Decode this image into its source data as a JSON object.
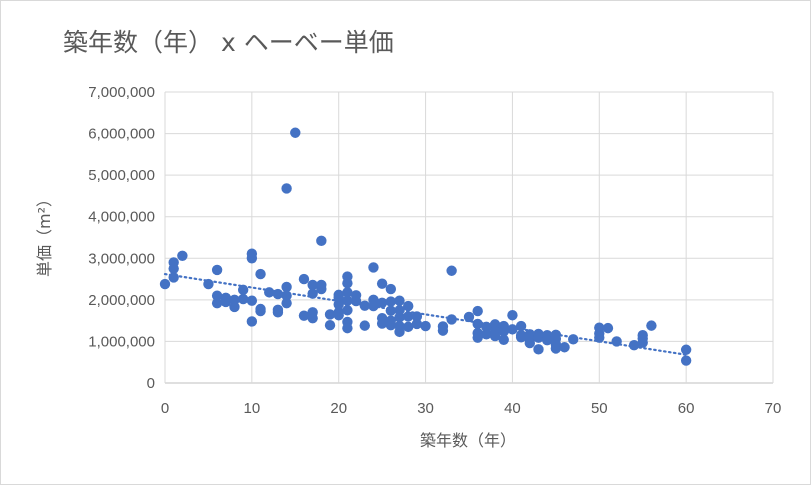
{
  "chart_data": {
    "type": "scatter",
    "title": "築年数（年） x ヘーベー単価",
    "xlabel": "築年数（年）",
    "ylabel": "単価（m²）",
    "xlim": [
      0,
      70
    ],
    "ylim": [
      0,
      7000000
    ],
    "x_ticks": [
      0,
      10,
      20,
      30,
      40,
      50,
      60,
      70
    ],
    "y_ticks": [
      0,
      1000000,
      2000000,
      3000000,
      4000000,
      5000000,
      6000000,
      7000000
    ],
    "y_tick_labels": [
      "0",
      "1,000,000",
      "2,000,000",
      "3,000,000",
      "4,000,000",
      "5,000,000",
      "6,000,000",
      "7,000,000"
    ],
    "grid": true,
    "legend": "none",
    "marker_color": "#4472c4",
    "trendline": {
      "type": "linear",
      "style": "dotted",
      "color": "#4472c4",
      "x": [
        0,
        60
      ],
      "y": [
        2620000,
        680000
      ]
    },
    "series": [
      {
        "points": [
          [
            0,
            2380000
          ],
          [
            1,
            2900000
          ],
          [
            1,
            2750000
          ],
          [
            1,
            2540000
          ],
          [
            2,
            3060000
          ],
          [
            5,
            2380000
          ],
          [
            6,
            2720000
          ],
          [
            6,
            2100000
          ],
          [
            6,
            1920000
          ],
          [
            7,
            2050000
          ],
          [
            7,
            1950000
          ],
          [
            8,
            2000000
          ],
          [
            8,
            1830000
          ],
          [
            9,
            2240000
          ],
          [
            9,
            2020000
          ],
          [
            10,
            3110000
          ],
          [
            10,
            3000000
          ],
          [
            10,
            1980000
          ],
          [
            10,
            1480000
          ],
          [
            11,
            2620000
          ],
          [
            11,
            1780000
          ],
          [
            11,
            1730000
          ],
          [
            12,
            2180000
          ],
          [
            13,
            2140000
          ],
          [
            13,
            1760000
          ],
          [
            13,
            1700000
          ],
          [
            14,
            4680000
          ],
          [
            14,
            2310000
          ],
          [
            14,
            2100000
          ],
          [
            14,
            1920000
          ],
          [
            15,
            6020000
          ],
          [
            16,
            2500000
          ],
          [
            16,
            1620000
          ],
          [
            17,
            2360000
          ],
          [
            17,
            2150000
          ],
          [
            17,
            1700000
          ],
          [
            17,
            1560000
          ],
          [
            18,
            3420000
          ],
          [
            18,
            2360000
          ],
          [
            18,
            2260000
          ],
          [
            19,
            1650000
          ],
          [
            19,
            1390000
          ],
          [
            20,
            2120000
          ],
          [
            20,
            2050000
          ],
          [
            20,
            1890000
          ],
          [
            20,
            1700000
          ],
          [
            20,
            1630000
          ],
          [
            21,
            2560000
          ],
          [
            21,
            2400000
          ],
          [
            21,
            2180000
          ],
          [
            21,
            1980000
          ],
          [
            21,
            1750000
          ],
          [
            21,
            1470000
          ],
          [
            21,
            1320000
          ],
          [
            22,
            2110000
          ],
          [
            22,
            1970000
          ],
          [
            23,
            1860000
          ],
          [
            23,
            1380000
          ],
          [
            24,
            2780000
          ],
          [
            24,
            2000000
          ],
          [
            24,
            1850000
          ],
          [
            25,
            2390000
          ],
          [
            25,
            1930000
          ],
          [
            25,
            1560000
          ],
          [
            25,
            1430000
          ],
          [
            26,
            2260000
          ],
          [
            26,
            1960000
          ],
          [
            26,
            1740000
          ],
          [
            26,
            1500000
          ],
          [
            26,
            1390000
          ],
          [
            27,
            1980000
          ],
          [
            27,
            1750000
          ],
          [
            27,
            1580000
          ],
          [
            27,
            1370000
          ],
          [
            27,
            1230000
          ],
          [
            28,
            1850000
          ],
          [
            28,
            1600000
          ],
          [
            28,
            1350000
          ],
          [
            29,
            1600000
          ],
          [
            29,
            1420000
          ],
          [
            30,
            1370000
          ],
          [
            32,
            1360000
          ],
          [
            32,
            1260000
          ],
          [
            33,
            2700000
          ],
          [
            33,
            1530000
          ],
          [
            35,
            1590000
          ],
          [
            36,
            1730000
          ],
          [
            36,
            1420000
          ],
          [
            36,
            1200000
          ],
          [
            36,
            1090000
          ],
          [
            37,
            1350000
          ],
          [
            37,
            1170000
          ],
          [
            38,
            1410000
          ],
          [
            38,
            1330000
          ],
          [
            38,
            1240000
          ],
          [
            38,
            1130000
          ],
          [
            39,
            1370000
          ],
          [
            39,
            1240000
          ],
          [
            39,
            1040000
          ],
          [
            40,
            1630000
          ],
          [
            40,
            1290000
          ],
          [
            41,
            1370000
          ],
          [
            41,
            1150000
          ],
          [
            41,
            1100000
          ],
          [
            42,
            1170000
          ],
          [
            42,
            1050000
          ],
          [
            42,
            960000
          ],
          [
            43,
            1180000
          ],
          [
            43,
            1090000
          ],
          [
            43,
            810000
          ],
          [
            44,
            1150000
          ],
          [
            44,
            1030000
          ],
          [
            45,
            1160000
          ],
          [
            45,
            1060000
          ],
          [
            45,
            930000
          ],
          [
            45,
            830000
          ],
          [
            46,
            860000
          ],
          [
            47,
            1050000
          ],
          [
            50,
            1330000
          ],
          [
            50,
            1190000
          ],
          [
            50,
            1090000
          ],
          [
            51,
            1320000
          ],
          [
            52,
            1000000
          ],
          [
            54,
            910000
          ],
          [
            55,
            1150000
          ],
          [
            55,
            1070000
          ],
          [
            55,
            970000
          ],
          [
            56,
            1380000
          ],
          [
            60,
            800000
          ],
          [
            60,
            540000
          ]
        ]
      }
    ]
  }
}
